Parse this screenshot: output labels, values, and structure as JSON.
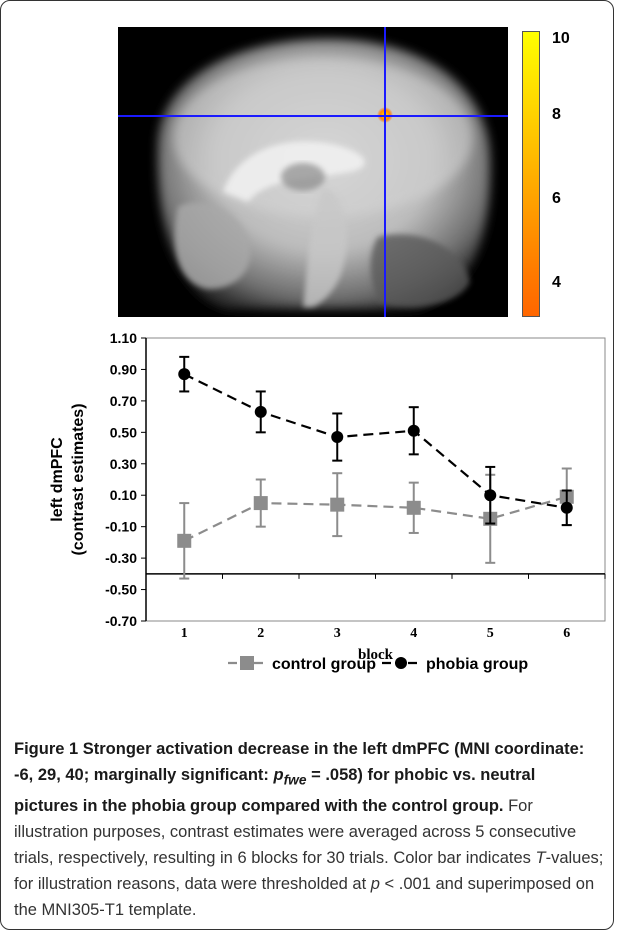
{
  "colorbar": {
    "labels": [
      "10",
      "8",
      "6",
      "4"
    ]
  },
  "chart_data": {
    "type": "line",
    "xlabel": "block",
    "ylabel_line1": "left dmPFC",
    "ylabel_line2": "(contrast estimates)",
    "categories": [
      "1",
      "2",
      "3",
      "4",
      "5",
      "6"
    ],
    "yticks": [
      "1.10",
      "0.90",
      "0.70",
      "0.50",
      "0.30",
      "0.10",
      "-0.10",
      "-0.30",
      "-0.50",
      "-0.70"
    ],
    "ylim": [
      -0.7,
      1.1
    ],
    "x_axis_crosses_at": -0.4,
    "series": [
      {
        "name": "control group",
        "color": "#8c8c8c",
        "marker": "square",
        "values": [
          -0.19,
          0.05,
          0.04,
          0.02,
          -0.05,
          0.09
        ],
        "errors": [
          0.24,
          0.15,
          0.2,
          0.16,
          0.28,
          0.18
        ]
      },
      {
        "name": "phobia group",
        "color": "#000000",
        "marker": "circle",
        "values": [
          0.87,
          0.63,
          0.47,
          0.51,
          0.1,
          0.02
        ],
        "errors": [
          0.11,
          0.13,
          0.15,
          0.15,
          0.18,
          0.11
        ]
      }
    ]
  },
  "caption": {
    "bold_a": "Figure 1 Stronger activation decrease in the left dmPFC (MNI coordinate: -6, 29, 40; marginally significant: ",
    "p": "p",
    "sub": "fwe",
    "bold_b": " = .058) for phobic vs. neutral pictures in the phobia group compared with the control group.",
    "text_a": " For illustration purposes, contrast estimates were averaged across 5 consecutive trials, respectively, resulting in 6 blocks for 30 trials. Color bar indicates ",
    "T": "T",
    "text_b": "-values; for illustration reasons, data were thresholded at ",
    "p2": "p",
    "text_c": " < .001 and superimposed on the MNI305-T1 template."
  }
}
